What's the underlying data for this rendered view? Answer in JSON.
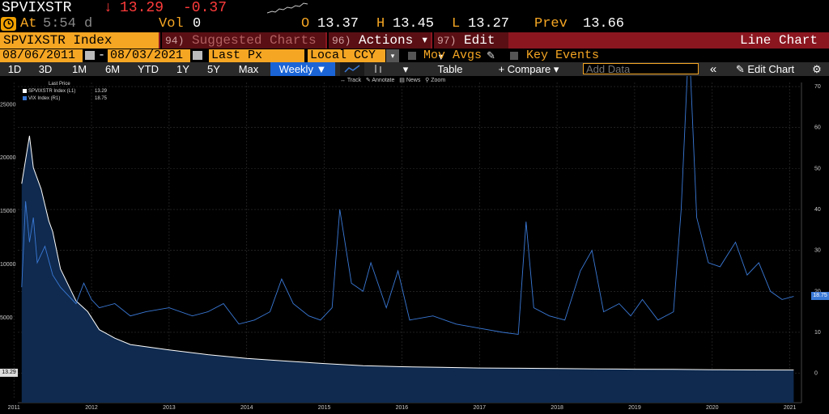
{
  "header": {
    "ticker": "SPVIXSTR",
    "arrow": "↓",
    "last": "13.29",
    "change": "-0.37",
    "at_label": "At",
    "at_time": "5:54 d",
    "vol_label": "Vol",
    "vol_value": "0",
    "open_label": "O",
    "open_value": "13.37",
    "high_label": "H",
    "high_value": "13.45",
    "low_label": "L",
    "low_value": "13.27",
    "prev_label": "Prev",
    "prev_value": "13.66"
  },
  "menubar": {
    "security": "SPVIXSTR Index",
    "suggested_num": "94)",
    "suggested_label": "Suggested Charts",
    "actions_num": "96)",
    "actions_label": "Actions ▾",
    "edit_num": "97)",
    "edit_label": "Edit ▾",
    "chart_type": "Line Chart"
  },
  "settings": {
    "start_date": "08/06/2011",
    "dash": "-",
    "end_date": "08/03/2021",
    "field": "Last Px",
    "currency": "Local CCY",
    "mov_avgs": "Mov Avgs",
    "key_events": "Key Events"
  },
  "toolbar": {
    "ranges": [
      "1D",
      "3D",
      "1M",
      "6M",
      "YTD",
      "1Y",
      "5Y",
      "Max"
    ],
    "frequency": "Weekly ▼",
    "table": "Table",
    "compare": "+ Compare ▾",
    "add_data_placeholder": "Add Data",
    "collapse": "«",
    "edit_chart": "✎ Edit Chart",
    "settings_icon": "gear-icon"
  },
  "tools": {
    "track": "Track",
    "annotate": "Annotate",
    "news": "News",
    "zoom": "Zoom"
  },
  "chart_data": {
    "type": "line",
    "legend_title": "Last Price",
    "legend_placement": "top-left",
    "series": [
      {
        "name": "SPVIXSTR Index  (L1)",
        "last_label": "13.29",
        "color": "#ffffff",
        "fill": "#0f2a4e",
        "axis": "left",
        "x": [
          2011.6,
          2011.7,
          2011.75,
          2011.85,
          2011.95,
          2012.0,
          2012.1,
          2012.2,
          2012.3,
          2012.45,
          2012.6,
          2012.8,
          2013.0,
          2013.5,
          2014.0,
          2014.5,
          2015.0,
          2015.5,
          2016.0,
          2016.5,
          2017.0,
          2017.5,
          2018.0,
          2018.5,
          2019.0,
          2019.5,
          2020.0,
          2020.5,
          2021.0,
          2021.55
        ],
        "values": [
          17500,
          22000,
          19000,
          17000,
          14000,
          13000,
          9500,
          8000,
          6500,
          5500,
          3800,
          3000,
          2400,
          1900,
          1450,
          1100,
          850,
          620,
          420,
          320,
          260,
          200,
          180,
          150,
          120,
          90,
          70,
          40,
          20,
          13.29
        ]
      },
      {
        "name": "VIX Index  (R1)",
        "last_label": "18.75",
        "color": "#3a79d6",
        "axis": "right",
        "x": [
          2011.6,
          2011.65,
          2011.7,
          2011.75,
          2011.8,
          2011.9,
          2012.0,
          2012.1,
          2012.2,
          2012.3,
          2012.4,
          2012.5,
          2012.6,
          2012.8,
          2013.0,
          2013.2,
          2013.5,
          2013.8,
          2014.0,
          2014.2,
          2014.4,
          2014.6,
          2014.8,
          2014.95,
          2015.1,
          2015.3,
          2015.45,
          2015.6,
          2015.7,
          2015.85,
          2016.0,
          2016.1,
          2016.3,
          2016.45,
          2016.6,
          2016.9,
          2017.2,
          2017.5,
          2017.8,
          2018.0,
          2018.1,
          2018.2,
          2018.4,
          2018.6,
          2018.8,
          2018.95,
          2019.1,
          2019.3,
          2019.45,
          2019.6,
          2019.8,
          2020.0,
          2020.1,
          2020.2,
          2020.3,
          2020.45,
          2020.6,
          2020.8,
          2020.95,
          2021.1,
          2021.25,
          2021.4,
          2021.55
        ],
        "values": [
          21,
          42,
          32,
          38,
          27,
          31,
          24,
          21,
          19,
          17,
          22,
          18,
          16,
          17,
          14,
          15,
          16,
          14,
          15,
          17,
          12,
          13,
          15,
          23,
          17,
          14,
          13,
          16,
          40,
          22,
          20,
          27,
          16,
          25,
          13,
          14,
          12,
          11,
          10,
          9.5,
          37,
          16,
          14,
          13,
          25,
          30,
          15,
          17,
          14,
          18,
          13,
          15,
          40,
          82,
          38,
          27,
          26,
          32,
          24,
          27,
          20,
          18,
          18.75
        ]
      }
    ],
    "left_axis": {
      "ticks": [
        "25000",
        "20000",
        "15000",
        "10000",
        "5000"
      ],
      "ylim": [
        -2600,
        27000
      ]
    },
    "right_axis": {
      "ticks": [
        "70",
        "60",
        "50",
        "40",
        "30",
        "20",
        "10",
        "0"
      ],
      "ylim": [
        -6,
        71
      ]
    },
    "x_axis": {
      "ticks": [
        "2011",
        "2012",
        "2013",
        "2014",
        "2015",
        "2016",
        "2017",
        "2018",
        "2019",
        "2020",
        "2021"
      ],
      "xlim": [
        2011.55,
        2021.65
      ]
    },
    "grid": true
  }
}
